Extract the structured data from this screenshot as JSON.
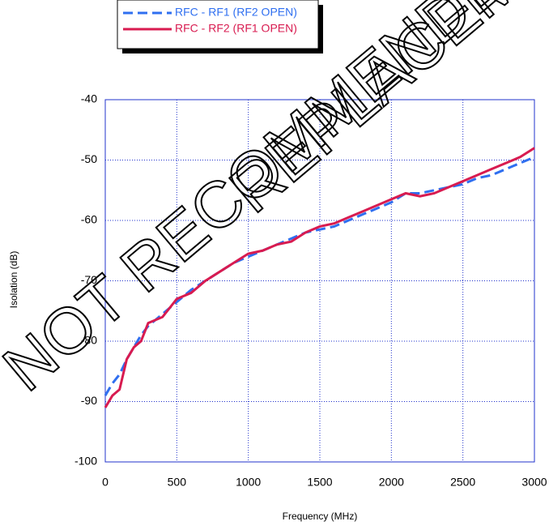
{
  "chart_data": {
    "type": "line",
    "x_label": "Frequency (MHz)",
    "y_label": "Isolation (dB)",
    "annotations": [
      "NOT RECOMMENDED",
      "REPLACEMENT"
    ],
    "x": [
      0,
      50,
      100,
      150,
      200,
      250,
      300,
      400,
      500,
      600,
      700,
      800,
      900,
      1000,
      1100,
      1200,
      1300,
      1400,
      1500,
      1600,
      1700,
      1800,
      1900,
      2000,
      2100,
      2200,
      2300,
      2400,
      2500,
      2600,
      2700,
      2800,
      2900,
      3000
    ],
    "series": [
      {
        "name": "RFC - RF1 (RF2 OPEN)",
        "color": "#2f6ff0",
        "dash": true,
        "values": [
          -89,
          -87,
          -85.5,
          -83,
          -81,
          -79,
          -77.5,
          -75.5,
          -73.5,
          -71.5,
          -70,
          -68.5,
          -67,
          -66,
          -65,
          -64,
          -63,
          -62,
          -61.5,
          -61,
          -60,
          -59,
          -58,
          -57,
          -55.5,
          -55.5,
          -55,
          -54.5,
          -54,
          -53,
          -52.5,
          -51.5,
          -50.5,
          -49.5
        ]
      },
      {
        "name": "RFC - RF2 (RF1 OPEN)",
        "color": "#d81b50",
        "dash": false,
        "values": [
          -91,
          -89,
          -88,
          -83,
          -81,
          -80,
          -77,
          -76,
          -73,
          -72,
          -70,
          -68.5,
          -67,
          -65.5,
          -65,
          -64,
          -63.5,
          -62,
          -61,
          -60.5,
          -59.5,
          -58.5,
          -57.5,
          -56.5,
          -55.5,
          -56,
          -55.5,
          -54.5,
          -53.5,
          -52.5,
          -51.5,
          -50.5,
          -49.5,
          -48
        ]
      }
    ],
    "xlim": [
      0,
      3000
    ],
    "xticks": [
      0,
      500,
      1000,
      1500,
      2000,
      2500,
      3000
    ],
    "ylim": [
      -100,
      -40
    ],
    "yticks": [
      -100,
      -90,
      -80,
      -70,
      -60,
      -50,
      -40
    ],
    "grid": true
  }
}
